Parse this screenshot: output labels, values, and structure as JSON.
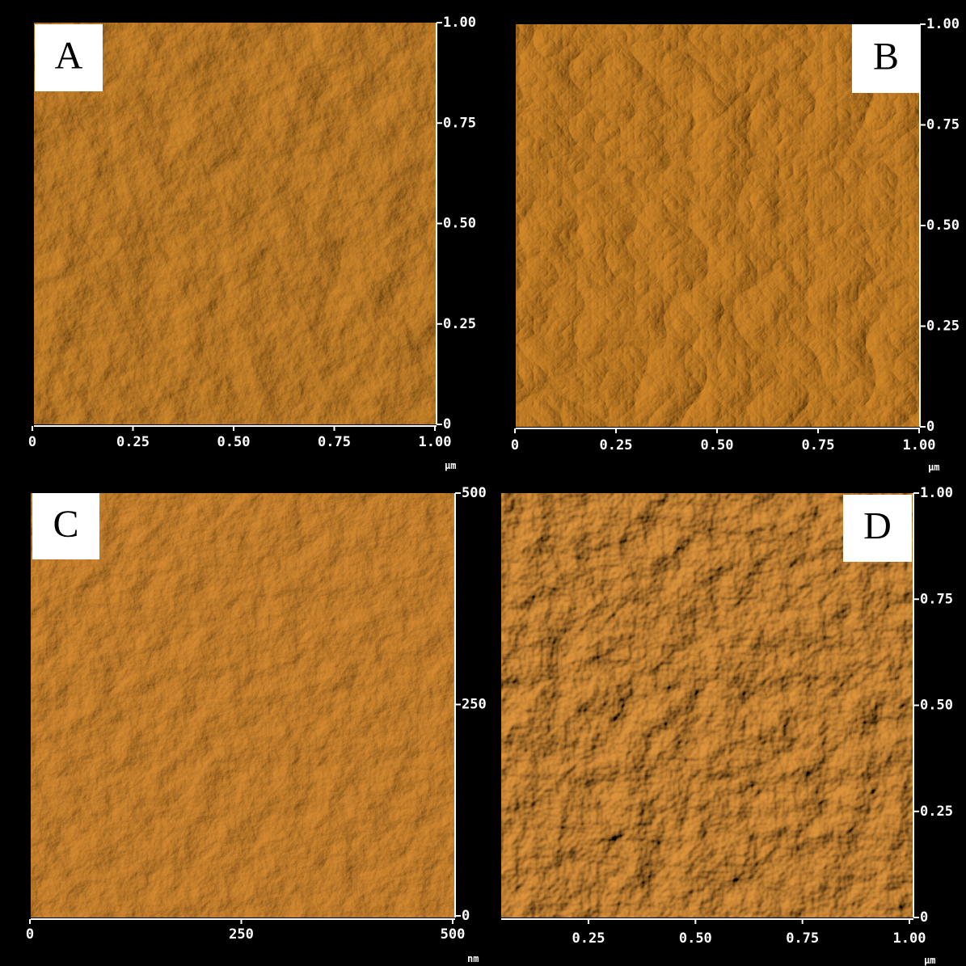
{
  "panels": [
    {
      "label": "A",
      "x_ticks": [
        "0",
        "0.25",
        "0.50",
        "0.75",
        "1.00"
      ],
      "y_ticks": [
        "0",
        "0.25",
        "0.50",
        "0.75",
        "1.00"
      ],
      "unit": "μm"
    },
    {
      "label": "B",
      "x_ticks": [
        "0",
        "0.25",
        "0.50",
        "0.75",
        "1.00"
      ],
      "y_ticks": [
        "0",
        "0.25",
        "0.50",
        "0.75",
        "1.00"
      ],
      "unit": "μm"
    },
    {
      "label": "C",
      "x_ticks": [
        "0",
        "250",
        "500"
      ],
      "y_ticks": [
        "0",
        "250",
        "500"
      ],
      "unit": "nm"
    },
    {
      "label": "D",
      "x_ticks": [
        "0.25",
        "0.50",
        "0.75",
        "1.00"
      ],
      "y_ticks": [
        "0",
        "0.25",
        "0.50",
        "0.75",
        "1.00"
      ],
      "unit": "μm"
    }
  ]
}
